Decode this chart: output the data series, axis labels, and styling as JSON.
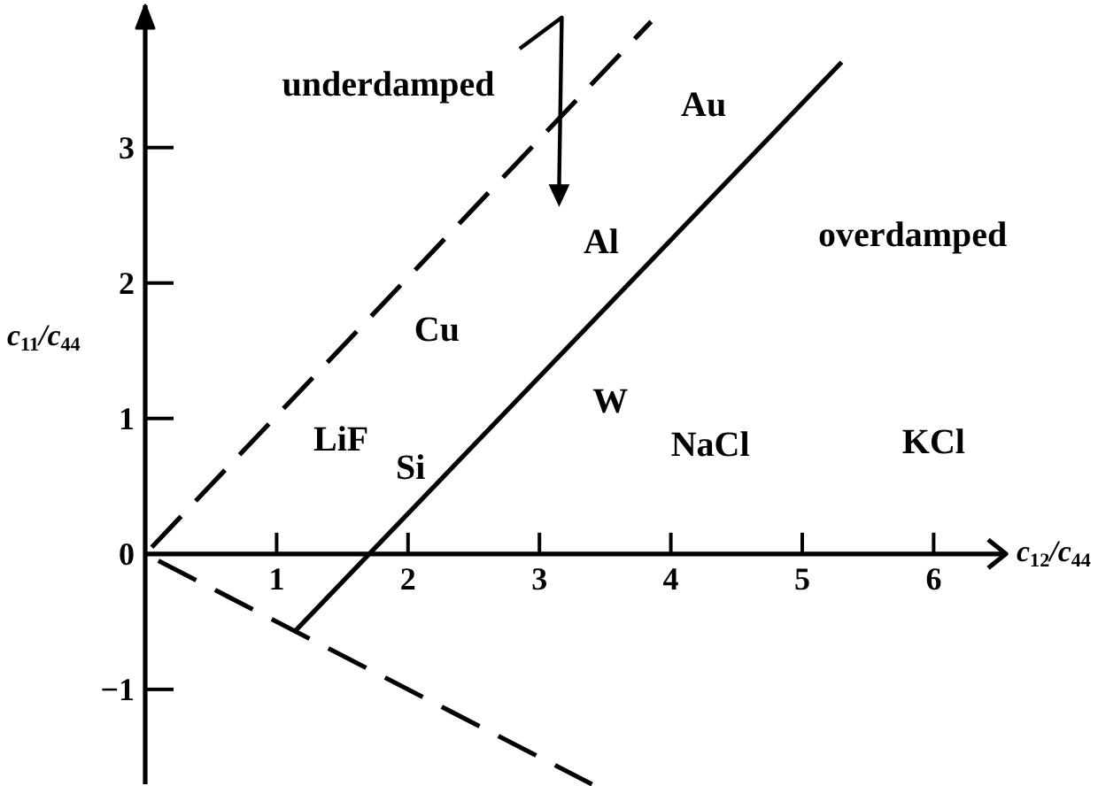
{
  "chart_data": {
    "type": "line",
    "xlabel": "c$_{12}$/c$_{44}$",
    "ylabel": "c$_{11}$/c$_{44}$",
    "xlim": [
      0,
      6.55
    ],
    "ylim": [
      -1.7,
      4.05
    ],
    "xticks": [
      1,
      2,
      3,
      4,
      5,
      6
    ],
    "yticks": [
      -1,
      0,
      1,
      2,
      3
    ],
    "series": [
      {
        "color": "#000000",
        "line_style": "dashed",
        "x": [
          0.05,
          3.85
        ],
        "values": [
          0.05,
          3.93
        ]
      },
      {
        "color": "#000000",
        "line_style": "solid",
        "x": [
          1.13,
          5.3
        ],
        "values": [
          -0.58,
          3.63
        ]
      },
      {
        "color": "#000000",
        "line_style": "dashed",
        "x": [
          0.1,
          3.4
        ],
        "values": [
          -0.05,
          -1.7
        ]
      }
    ],
    "annotations": [
      "underdamped",
      "overdamped",
      "Au",
      "Al",
      "Cu",
      "W",
      "NaCl",
      "KCl",
      "LiF",
      "Si"
    ]
  }
}
